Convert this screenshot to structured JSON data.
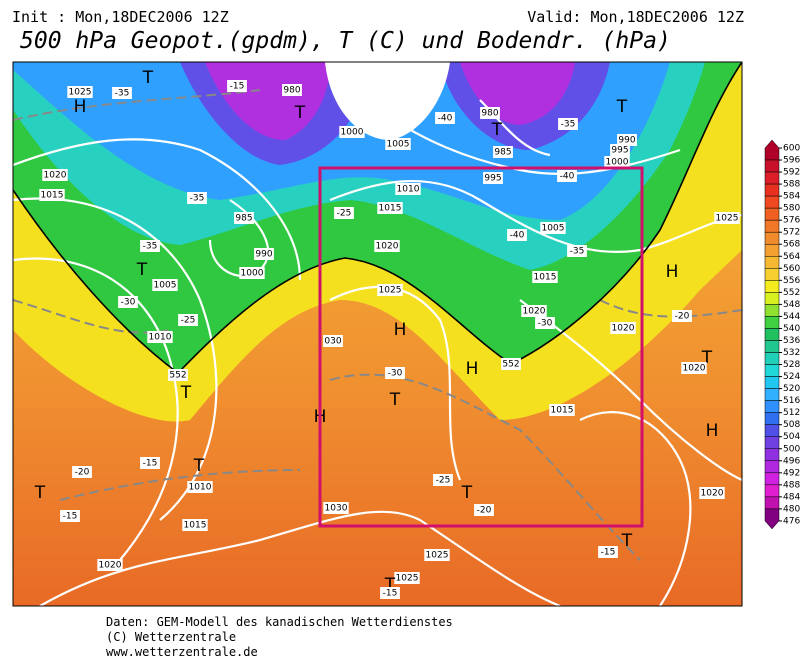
{
  "header": {
    "init": "Init : Mon,18DEC2006 12Z",
    "valid": "Valid: Mon,18DEC2006 12Z",
    "title": "500 hPa Geopot.(gpdm), T (C) und Bodendr. (hPa)"
  },
  "colorbar": {
    "ticks": [
      600,
      596,
      592,
      588,
      584,
      580,
      576,
      572,
      568,
      564,
      560,
      556,
      552,
      548,
      544,
      540,
      536,
      532,
      528,
      524,
      520,
      516,
      512,
      508,
      504,
      500,
      496,
      492,
      488,
      484,
      480,
      476
    ],
    "colors": [
      "#b0002a",
      "#c8102a",
      "#dc1e28",
      "#e83020",
      "#f04820",
      "#f06020",
      "#f07826",
      "#f08c2c",
      "#f4a030",
      "#f5b832",
      "#f5d030",
      "#f5ec20",
      "#d8f020",
      "#90e030",
      "#40d040",
      "#20c060",
      "#20c890",
      "#20d0b8",
      "#20d8d8",
      "#20c8f0",
      "#30b0ff",
      "#3090ff",
      "#3070f0",
      "#5050e8",
      "#7040e0",
      "#9030e0",
      "#b028e0",
      "#d020e0",
      "#e020d0",
      "#c010b0",
      "#800080"
    ]
  },
  "map_labels": [
    "1025",
    "H",
    "-35",
    "T",
    "-15",
    "980",
    "T",
    "1000",
    "1005",
    "-40",
    "980",
    "T",
    "T",
    "-35",
    "990",
    "995",
    "1000",
    "985",
    "995",
    "-40",
    "1020",
    "1015",
    "-35",
    "1010",
    "1015",
    "-25",
    "985",
    "990",
    "1000",
    "-35",
    "T",
    "-40",
    "1005",
    "-35",
    "1020",
    "1015",
    "H",
    "1025",
    "-30",
    "1005",
    "-25",
    "1010",
    "1025",
    "1020",
    "-30",
    "-20",
    "1020",
    "H",
    "030",
    "552",
    "H",
    "552",
    "T",
    "1020",
    "-30",
    "T",
    "T",
    "H",
    "1015",
    "H",
    "-20",
    "-15",
    "T",
    "1010",
    "T",
    "-15",
    "1015",
    "-25",
    "T",
    "-20",
    "1030",
    "1020",
    "1020",
    "-15",
    "T",
    "1025",
    "1025",
    "T",
    "-15"
  ],
  "footer": [
    "Daten: GEM-Modell des kanadischen Wetterdienstes",
    "(C) Wetterzentrale",
    "www.wetterzentrale.de"
  ]
}
